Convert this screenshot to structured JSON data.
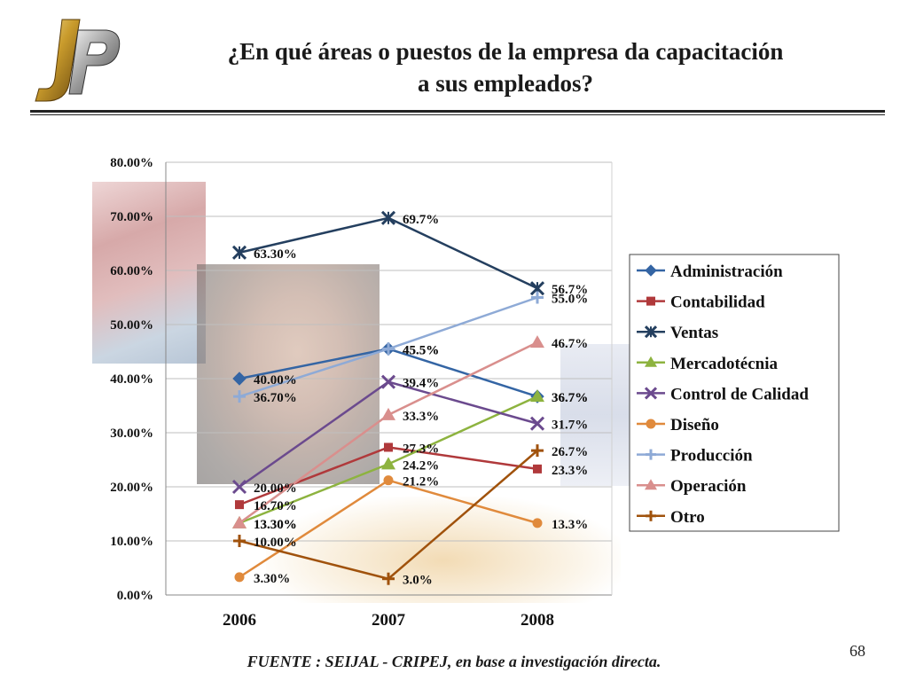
{
  "slide": {
    "title_line1": "¿En qué áreas o puestos de la empresa da capacitación",
    "title_line2": "a sus empleados?",
    "footer": "FUENTE :  SEIJAL - CRIPEJ,  en base a investigación directa.",
    "page_number": "68"
  },
  "chart_data": {
    "type": "line",
    "title": "",
    "xlabel": "",
    "ylabel": "",
    "categories": [
      "2006",
      "2007",
      "2008"
    ],
    "ylim": [
      0,
      80
    ],
    "yticks": [
      "0.00%",
      "10.00%",
      "20.00%",
      "30.00%",
      "40.00%",
      "50.00%",
      "60.00%",
      "70.00%",
      "80.00%"
    ],
    "grid": true,
    "legend_position": "right",
    "series": [
      {
        "name": "Administración",
        "values": [
          40.0,
          45.5,
          36.7
        ],
        "labels": [
          "40.00%",
          "45.5%",
          "36.7%"
        ],
        "color": "#3465a4",
        "marker": "diamond"
      },
      {
        "name": "Contabilidad",
        "values": [
          16.7,
          27.3,
          23.3
        ],
        "labels": [
          "16.70%",
          "27.3%",
          "23.3%"
        ],
        "color": "#b0393b",
        "marker": "square"
      },
      {
        "name": "Ventas",
        "values": [
          63.3,
          69.7,
          56.7
        ],
        "labels": [
          "63.30%",
          "69.7%",
          "56.7%"
        ],
        "color": "#243f5f",
        "marker": "asterisk"
      },
      {
        "name": "Mercadotécnia",
        "values": [
          13.3,
          24.2,
          36.7
        ],
        "labels": [
          "13.30%",
          "24.2%",
          "36.7%"
        ],
        "color": "#8db33f",
        "marker": "triangle"
      },
      {
        "name": "Control de Calidad",
        "values": [
          20.0,
          39.4,
          31.7
        ],
        "labels": [
          "20.00%",
          "39.4%",
          "31.7%"
        ],
        "color": "#6b4a8e",
        "marker": "x"
      },
      {
        "name": "Diseño",
        "values": [
          3.3,
          21.2,
          13.3
        ],
        "labels": [
          "3.30%",
          "21.2%",
          "13.3%"
        ],
        "color": "#e08a3c",
        "marker": "circle"
      },
      {
        "name": "Producción",
        "values": [
          36.7,
          45.5,
          55.0
        ],
        "labels": [
          "36.70%",
          "45.5%",
          "55.0%"
        ],
        "color": "#8eaad6",
        "marker": "plus"
      },
      {
        "name": "Operación",
        "values": [
          13.3,
          33.3,
          46.7
        ],
        "labels": [
          "13.30%",
          "33.3%",
          "46.7%"
        ],
        "color": "#d98f8d",
        "marker": "triangle"
      },
      {
        "name": "Otro",
        "values": [
          10.0,
          3.0,
          26.7
        ],
        "labels": [
          "10.00%",
          "3.0%",
          "26.7%"
        ],
        "color": "#a0520c",
        "marker": "plus"
      }
    ]
  }
}
